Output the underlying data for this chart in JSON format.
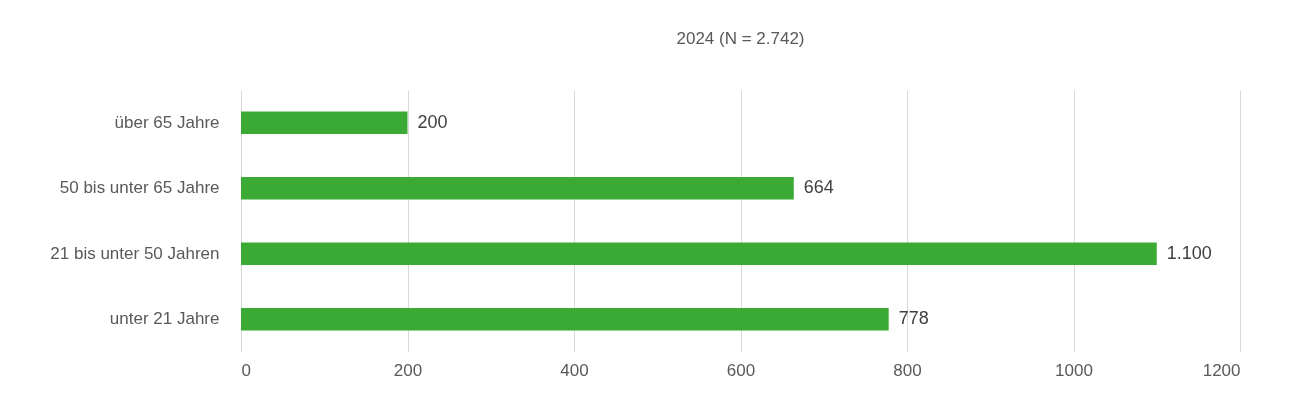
{
  "chart_data": {
    "type": "bar",
    "orientation": "horizontal",
    "title": "2024 (N = 2.742)",
    "categories": [
      "über 65 Jahre",
      "50 bis unter 65 Jahre",
      "21 bis unter 50 Jahren",
      "unter 21 Jahre"
    ],
    "values": [
      200,
      664,
      1100,
      778
    ],
    "value_labels": [
      "200",
      "664",
      "1.100",
      "778"
    ],
    "color": "#3aaa35",
    "xlim": [
      0,
      1200
    ],
    "xticks": [
      0,
      200,
      400,
      600,
      800,
      1000,
      1200
    ],
    "grid": "x"
  }
}
